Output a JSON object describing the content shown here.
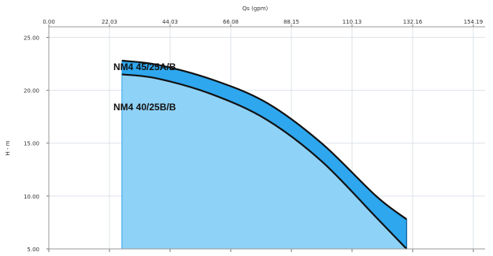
{
  "chart_data": {
    "type": "area",
    "title": "",
    "top_axis": {
      "label": "Qs (gpm)",
      "ticks": [
        "0.00",
        "22.03",
        "44.03",
        "66.08",
        "88.15",
        "110.13",
        "132.16",
        "154.19"
      ]
    },
    "ylabel": "H - m",
    "y_ticks": [
      "5.00",
      "10.00",
      "15.00",
      "20.00",
      "25.00"
    ],
    "ylim": [
      5,
      26
    ],
    "x": [
      6.7,
      10,
      15,
      20,
      25,
      30,
      32.8
    ],
    "series": [
      {
        "name": "NM4 45/25A/B",
        "values": [
          22.8,
          22.4,
          21.0,
          18.8,
          15.0,
          10.0,
          7.8
        ]
      },
      {
        "name": "NM4 40/25B/B",
        "values": [
          21.5,
          21.1,
          19.6,
          17.2,
          13.3,
          8.0,
          5.0
        ]
      }
    ],
    "grid": true,
    "colors": {
      "lower_fill": "#8fd2f7",
      "band_fill": "#2ea7ee",
      "curve": "#111111",
      "grid": "#dde3ea"
    }
  }
}
